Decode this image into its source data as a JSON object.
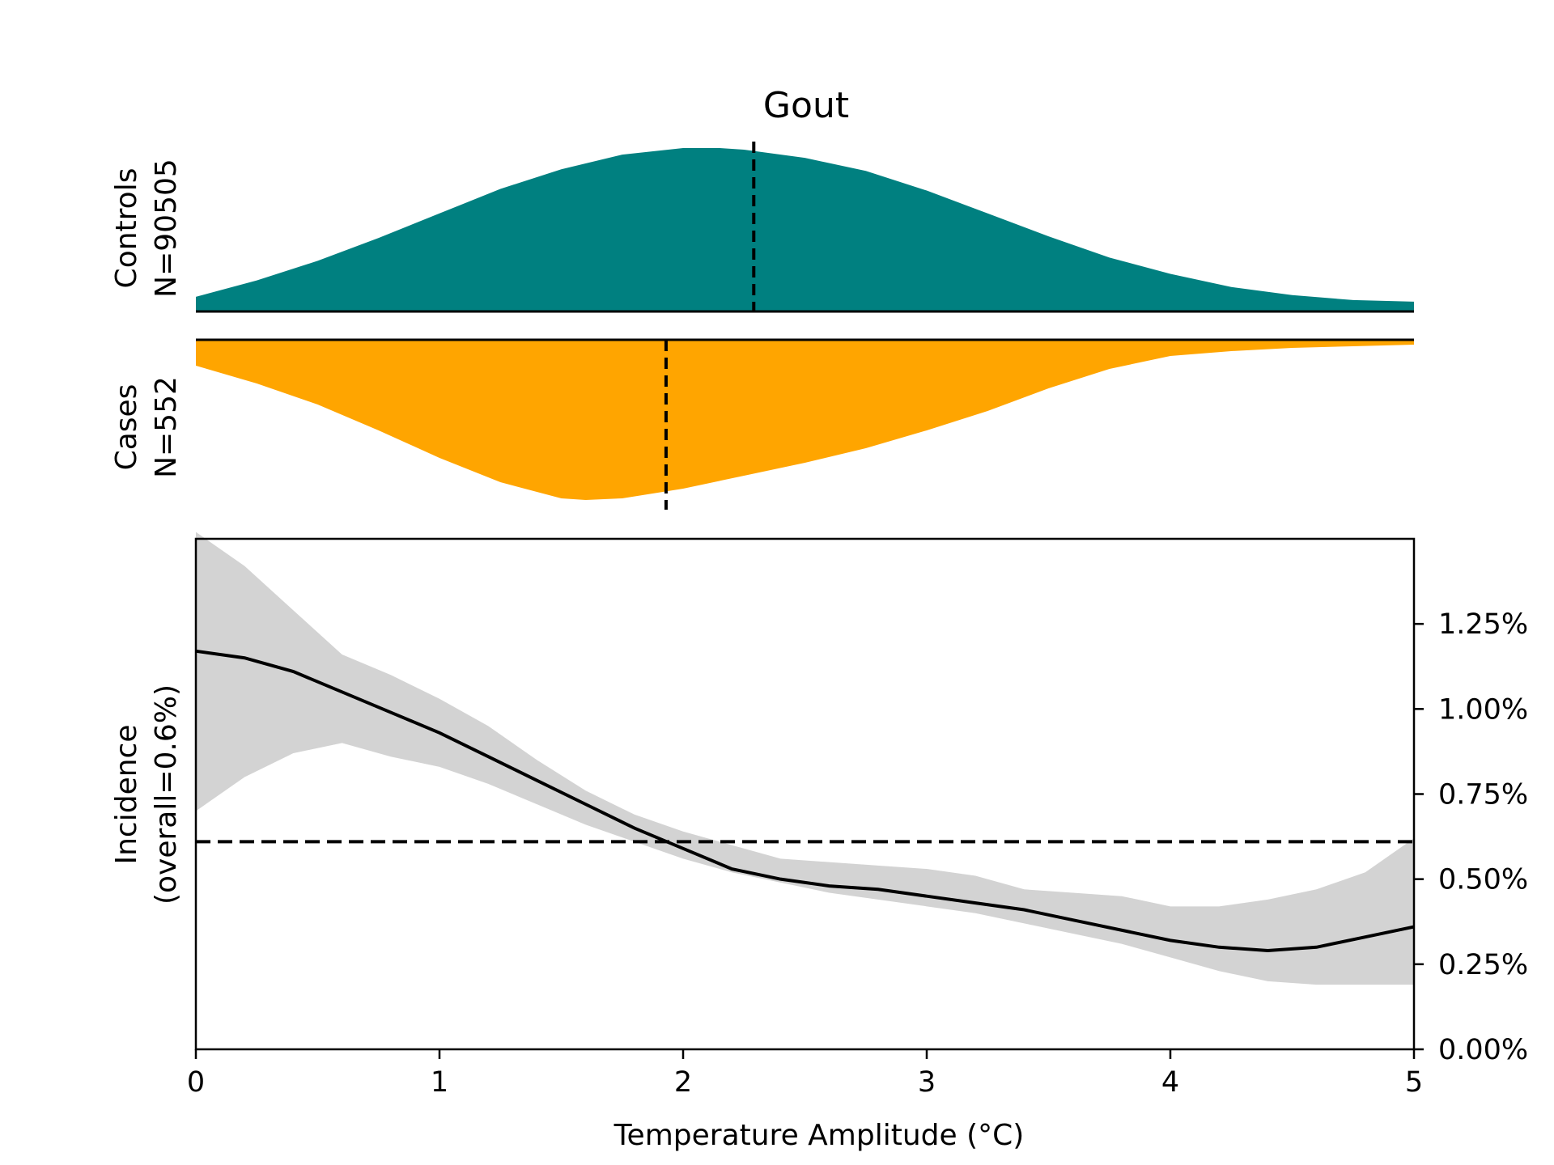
{
  "chart_data": {
    "type": "area",
    "title": "Gout",
    "colors": {
      "controls": "#008080",
      "cases": "#FFA500",
      "ci_band": "#D3D3D3",
      "line": "#000000"
    },
    "density_panels": {
      "controls": {
        "label_line1": "Controls",
        "label_line2": "N=90505",
        "median": 2.29,
        "x": [
          0,
          0.25,
          0.5,
          0.75,
          1.0,
          1.25,
          1.5,
          1.75,
          2.0,
          2.15,
          2.25,
          2.5,
          2.75,
          3.0,
          3.25,
          3.5,
          3.75,
          4.0,
          4.25,
          4.5,
          4.75,
          5.0
        ],
        "density": [
          0.09,
          0.19,
          0.31,
          0.45,
          0.6,
          0.75,
          0.87,
          0.96,
          1.0,
          1.0,
          0.99,
          0.94,
          0.86,
          0.74,
          0.6,
          0.46,
          0.33,
          0.23,
          0.15,
          0.1,
          0.07,
          0.06
        ]
      },
      "cases": {
        "label_line1": "Cases",
        "label_line2": "N=552",
        "median": 1.93,
        "x": [
          0,
          0.25,
          0.5,
          0.75,
          1.0,
          1.25,
          1.5,
          1.6,
          1.75,
          2.0,
          2.25,
          2.5,
          2.75,
          3.0,
          3.25,
          3.5,
          3.75,
          4.0,
          4.25,
          4.5,
          4.75,
          5.0
        ],
        "density": [
          0.16,
          0.27,
          0.4,
          0.56,
          0.73,
          0.88,
          0.98,
          0.99,
          0.98,
          0.92,
          0.84,
          0.76,
          0.67,
          0.56,
          0.44,
          0.3,
          0.18,
          0.1,
          0.07,
          0.05,
          0.04,
          0.03
        ]
      }
    },
    "incidence_panel": {
      "ylabel_line1": "Incidence",
      "ylabel_line2": "(overall=0.6%)",
      "xlabel": "Temperature Amplitude (°C)",
      "xlim": [
        0,
        5
      ],
      "ylim": [
        0,
        1.5
      ],
      "x_ticks": [
        0,
        1,
        2,
        3,
        4,
        5
      ],
      "y_ticks": [
        0,
        0.25,
        0.5,
        0.75,
        1.0,
        1.25
      ],
      "y_tick_labels": [
        "0.00%",
        "0.25%",
        "0.50%",
        "0.75%",
        "1.00%",
        "1.25%"
      ],
      "overall_incidence": 0.61,
      "series": [
        {
          "x": [
            0,
            0.2,
            0.4,
            0.6,
            0.8,
            1.0,
            1.2,
            1.4,
            1.6,
            1.8,
            2.0,
            2.2,
            2.4,
            2.6,
            2.8,
            3.0,
            3.2,
            3.4,
            3.6,
            3.8,
            4.0,
            4.2,
            4.4,
            4.6,
            4.8,
            5.0
          ],
          "values": [
            1.17,
            1.15,
            1.11,
            1.05,
            0.99,
            0.93,
            0.86,
            0.79,
            0.72,
            0.65,
            0.59,
            0.53,
            0.5,
            0.48,
            0.47,
            0.45,
            0.43,
            0.41,
            0.38,
            0.35,
            0.32,
            0.3,
            0.29,
            0.3,
            0.33,
            0.36
          ],
          "ci_lower": [
            0.7,
            0.8,
            0.87,
            0.9,
            0.86,
            0.83,
            0.78,
            0.72,
            0.66,
            0.61,
            0.56,
            0.52,
            0.49,
            0.46,
            0.44,
            0.42,
            0.4,
            0.37,
            0.34,
            0.31,
            0.27,
            0.23,
            0.2,
            0.19,
            0.19,
            0.19
          ],
          "ci_upper": [
            1.52,
            1.42,
            1.29,
            1.16,
            1.1,
            1.03,
            0.95,
            0.85,
            0.76,
            0.69,
            0.64,
            0.6,
            0.56,
            0.55,
            0.54,
            0.53,
            0.51,
            0.47,
            0.46,
            0.45,
            0.42,
            0.42,
            0.44,
            0.47,
            0.52,
            0.62
          ]
        }
      ]
    }
  }
}
